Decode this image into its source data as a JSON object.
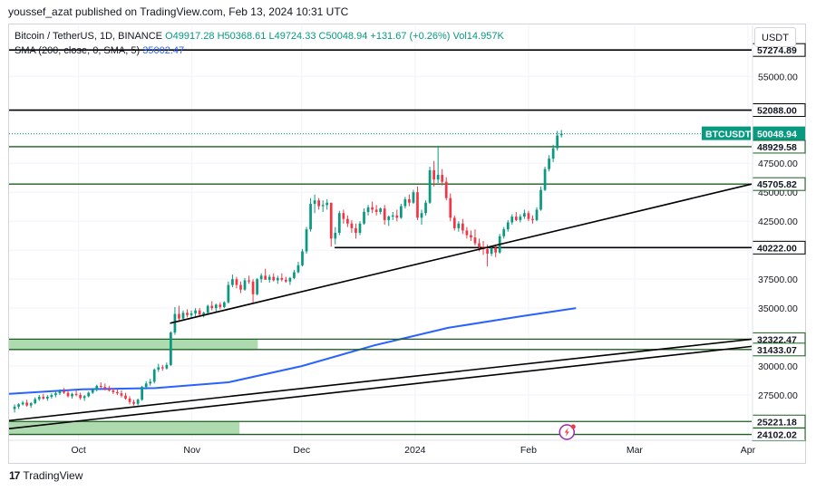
{
  "header": {
    "published_by": "youssef_azat published on TradingView.com, Feb 13, 2024 10:31 UTC"
  },
  "legend": {
    "symbol": "Bitcoin / TetherUS, 1D, BINANCE",
    "ohlc": "O49917.28 H50368.61 L49724.33 C50048.94 +131.67 (+0.26%) Vol14.957K",
    "sma_label": "SMA (200, close, 0, SMA, 5)",
    "sma_value": "35002.47"
  },
  "currency": "USDT",
  "footer": {
    "brand": "TradingView"
  },
  "colors": {
    "up": "#089981",
    "down": "#f23645",
    "sma": "#2962ff",
    "zone_fill": "#a5d6a7",
    "zone_border": "#1b5e20"
  },
  "chart_data": {
    "type": "candlestick",
    "title": "Bitcoin / TetherUS, 1D, BINANCE",
    "ylim": [
      23600,
      59400
    ],
    "y_ticks": [
      "55000.00",
      "50000.00",
      "47500.00",
      "45000.00",
      "42500.00",
      "40000.00",
      "37500.00",
      "35000.00",
      "30000.00",
      "27500.00"
    ],
    "y_tick_values": [
      55000,
      50000,
      47500,
      45000,
      42500,
      40000,
      37500,
      35000,
      30000,
      27500
    ],
    "x_labels": [
      {
        "text": "Oct",
        "day": 19
      },
      {
        "text": "Nov",
        "day": 50
      },
      {
        "text": "Dec",
        "day": 80
      },
      {
        "text": "2024",
        "day": 111
      },
      {
        "text": "Feb",
        "day": 142
      },
      {
        "text": "Mar",
        "day": 171
      },
      {
        "text": "Apr",
        "day": 202
      }
    ],
    "x_range_days": [
      0,
      203
    ],
    "last_price": {
      "symbol": "BTCUSDT",
      "value": "50048.94",
      "num": 50048.94
    },
    "horizontal_levels": [
      {
        "text": "57274.89",
        "value": 57274.89,
        "color": "#000000",
        "x_from_day": 0
      },
      {
        "text": "52088.00",
        "value": 52088.0,
        "color": "#000000",
        "x_from_day": 0
      },
      {
        "text": "48929.58",
        "value": 48929.58,
        "color": "#1b5e20",
        "x_from_day": 0
      },
      {
        "text": "45705.82",
        "value": 45705.82,
        "color": "#1b5e20",
        "x_from_day": 0
      },
      {
        "text": "40222.00",
        "value": 40222.0,
        "color": "#000000",
        "x_from_day": 89
      },
      {
        "text": "32322.47",
        "value": 32322.47,
        "color": "#1b5e20",
        "x_from_day": 0
      },
      {
        "text": "31433.07",
        "value": 31433.07,
        "color": "#1b5e20",
        "x_from_day": 0
      },
      {
        "text": "25221.18",
        "value": 25221.18,
        "color": "#1b5e20",
        "x_from_day": 0
      },
      {
        "text": "24102.02",
        "value": 24102.02,
        "color": "#1b5e20",
        "x_from_day": 0
      }
    ],
    "zones": [
      {
        "from": 31433.07,
        "to": 32322.47,
        "fill_to_day": 68
      },
      {
        "from": 24102.02,
        "to": 25221.18,
        "fill_to_day": 63
      }
    ],
    "trendlines": [
      {
        "from": {
          "day": 44,
          "price": 33700
        },
        "to": {
          "day": 203,
          "price": 45705.82
        }
      },
      {
        "from": {
          "day": 0,
          "price": 25300
        },
        "to": {
          "day": 203,
          "price": 32322.47
        }
      },
      {
        "from": {
          "day": 0,
          "price": 24600
        },
        "to": {
          "day": 203,
          "price": 31700
        }
      }
    ],
    "sma": [
      {
        "day": 0,
        "value": 27600
      },
      {
        "day": 20,
        "value": 28000
      },
      {
        "day": 40,
        "value": 28100
      },
      {
        "day": 60,
        "value": 28600
      },
      {
        "day": 80,
        "value": 30000
      },
      {
        "day": 100,
        "value": 31800
      },
      {
        "day": 120,
        "value": 33300
      },
      {
        "day": 140,
        "value": 34300
      },
      {
        "day": 155,
        "value": 35002.47
      }
    ],
    "candles": [
      [
        26300,
        26700,
        26000,
        26500
      ],
      [
        26500,
        26800,
        26300,
        26700
      ],
      [
        26700,
        27000,
        26600,
        26850
      ],
      [
        26850,
        27100,
        26500,
        26600
      ],
      [
        26600,
        26900,
        26400,
        26800
      ],
      [
        26800,
        27300,
        26700,
        27150
      ],
      [
        27150,
        27500,
        27000,
        27350
      ],
      [
        27350,
        27600,
        27100,
        27200
      ],
      [
        27200,
        27500,
        27000,
        27350
      ],
      [
        27350,
        27650,
        27200,
        27500
      ],
      [
        27500,
        27800,
        27300,
        27650
      ],
      [
        27650,
        28000,
        27500,
        27850
      ],
      [
        27850,
        28100,
        27600,
        27700
      ],
      [
        27700,
        27900,
        27300,
        27400
      ],
      [
        27400,
        27700,
        27200,
        27600
      ],
      [
        27600,
        27900,
        27400,
        27500
      ],
      [
        27500,
        27700,
        27100,
        27250
      ],
      [
        27250,
        27500,
        27000,
        27400
      ],
      [
        27400,
        27800,
        27300,
        27700
      ],
      [
        27700,
        28100,
        27600,
        27950
      ],
      [
        27950,
        28400,
        27800,
        28300
      ],
      [
        28300,
        28600,
        28100,
        28200
      ],
      [
        28200,
        28500,
        27900,
        28050
      ],
      [
        28050,
        28300,
        27800,
        27900
      ],
      [
        27900,
        28100,
        27600,
        27750
      ],
      [
        27750,
        28000,
        27500,
        27650
      ],
      [
        27650,
        27900,
        27300,
        27450
      ],
      [
        27450,
        27700,
        27100,
        27200
      ],
      [
        27200,
        27400,
        26700,
        26900
      ],
      [
        26900,
        27100,
        26600,
        26750
      ],
      [
        26750,
        27200,
        26600,
        27100
      ],
      [
        27100,
        28300,
        27000,
        28200
      ],
      [
        28200,
        28700,
        28000,
        28500
      ],
      [
        28500,
        28900,
        28300,
        28650
      ],
      [
        28650,
        29800,
        28500,
        29700
      ],
      [
        29700,
        30200,
        29500,
        29900
      ],
      [
        29900,
        30100,
        29600,
        29800
      ],
      [
        29800,
        30300,
        29700,
        30100
      ],
      [
        30100,
        33000,
        30000,
        32900
      ],
      [
        32900,
        35100,
        32700,
        34500
      ],
      [
        34500,
        35200,
        33800,
        34100
      ],
      [
        34100,
        34800,
        33900,
        34600
      ],
      [
        34600,
        34900,
        34200,
        34400
      ],
      [
        34400,
        34800,
        34200,
        34550
      ],
      [
        34550,
        35000,
        34300,
        34800
      ],
      [
        34800,
        35000,
        34300,
        34450
      ],
      [
        34450,
        34700,
        34200,
        34600
      ],
      [
        34600,
        35300,
        34500,
        35200
      ],
      [
        35200,
        35600,
        34800,
        35000
      ],
      [
        35000,
        35400,
        34700,
        35300
      ],
      [
        35300,
        35500,
        34900,
        35100
      ],
      [
        35100,
        35600,
        35000,
        35500
      ],
      [
        35500,
        37300,
        35400,
        37000
      ],
      [
        37000,
        37900,
        36800,
        37500
      ],
      [
        37500,
        37700,
        36700,
        37000
      ],
      [
        37000,
        37300,
        36300,
        36600
      ],
      [
        36600,
        37600,
        36500,
        37400
      ],
      [
        37400,
        37800,
        37100,
        37300
      ],
      [
        37300,
        37500,
        35500,
        36200
      ],
      [
        36200,
        37600,
        36100,
        37500
      ],
      [
        37500,
        38000,
        37200,
        37800
      ],
      [
        37800,
        38400,
        37500,
        37450
      ],
      [
        37450,
        37900,
        37200,
        37700
      ],
      [
        37700,
        38000,
        37300,
        37400
      ],
      [
        37400,
        37800,
        37100,
        37600
      ],
      [
        37600,
        38000,
        37300,
        37450
      ],
      [
        37450,
        37700,
        37200,
        37300
      ],
      [
        37300,
        37700,
        37000,
        37600
      ],
      [
        37600,
        38300,
        37500,
        38100
      ],
      [
        38100,
        39000,
        38000,
        38700
      ],
      [
        38700,
        40100,
        38600,
        39900
      ],
      [
        39900,
        42000,
        39700,
        41800
      ],
      [
        41800,
        44500,
        41600,
        44000
      ],
      [
        44000,
        44800,
        43200,
        44300
      ],
      [
        44300,
        44500,
        43500,
        43800
      ],
      [
        43800,
        44300,
        43300,
        43900
      ],
      [
        43900,
        44400,
        43500,
        44100
      ],
      [
        44100,
        44000,
        40300,
        41000
      ],
      [
        41000,
        42000,
        40500,
        41500
      ],
      [
        41500,
        43400,
        41300,
        43200
      ],
      [
        43200,
        43500,
        42300,
        42700
      ],
      [
        42700,
        43000,
        42000,
        42300
      ],
      [
        42300,
        42600,
        41500,
        41900
      ],
      [
        41900,
        42300,
        41000,
        41500
      ],
      [
        41500,
        42500,
        41300,
        42300
      ],
      [
        42300,
        43600,
        42200,
        43300
      ],
      [
        43300,
        43900,
        43000,
        43700
      ],
      [
        43700,
        44200,
        43200,
        43500
      ],
      [
        43500,
        43900,
        43000,
        43300
      ],
      [
        43300,
        43700,
        43100,
        43600
      ],
      [
        43600,
        43900,
        42200,
        42600
      ],
      [
        42600,
        43000,
        42100,
        42900
      ],
      [
        42900,
        43300,
        42600,
        43000
      ],
      [
        43000,
        43500,
        42500,
        42800
      ],
      [
        42800,
        44000,
        42700,
        43800
      ],
      [
        43800,
        44600,
        43600,
        44400
      ],
      [
        44400,
        44800,
        43800,
        44100
      ],
      [
        44100,
        45200,
        44000,
        45000
      ],
      [
        45000,
        45500,
        42600,
        42800
      ],
      [
        42800,
        43500,
        42200,
        43200
      ],
      [
        43200,
        44300,
        43000,
        44100
      ],
      [
        44100,
        47200,
        44000,
        46900
      ],
      [
        46900,
        47700,
        45500,
        46100
      ],
      [
        46100,
        49000,
        45800,
        46500
      ],
      [
        46500,
        47000,
        45600,
        45900
      ],
      [
        45900,
        46300,
        44300,
        44500
      ],
      [
        44500,
        44900,
        42500,
        42800
      ],
      [
        42800,
        43000,
        41700,
        41900
      ],
      [
        41900,
        42500,
        41600,
        42300
      ],
      [
        42300,
        42700,
        41400,
        41700
      ],
      [
        41700,
        42000,
        41000,
        41300
      ],
      [
        41300,
        41700,
        40800,
        41100
      ],
      [
        41100,
        41800,
        40400,
        40600
      ],
      [
        40600,
        41000,
        39900,
        40300
      ],
      [
        40300,
        40800,
        39600,
        40100
      ],
      [
        40100,
        40500,
        38600,
        39700
      ],
      [
        39700,
        40400,
        39500,
        40200
      ],
      [
        40200,
        40500,
        39400,
        39800
      ],
      [
        39800,
        41400,
        39700,
        41200
      ],
      [
        41200,
        42000,
        41000,
        41800
      ],
      [
        41800,
        42600,
        41600,
        42400
      ],
      [
        42400,
        43100,
        42200,
        42900
      ],
      [
        42900,
        43300,
        42500,
        42600
      ],
      [
        42600,
        43100,
        42400,
        42900
      ],
      [
        42900,
        43500,
        42700,
        43200
      ],
      [
        43200,
        43400,
        42500,
        42700
      ],
      [
        42700,
        43000,
        42300,
        42600
      ],
      [
        42600,
        43700,
        42500,
        43500
      ],
      [
        43500,
        45500,
        43400,
        45200
      ],
      [
        45200,
        47200,
        45100,
        47000
      ],
      [
        47000,
        48200,
        46800,
        47900
      ],
      [
        47900,
        49100,
        47600,
        48800
      ],
      [
        48800,
        50300,
        48600,
        49900
      ],
      [
        49917.28,
        50368.61,
        49724.33,
        50048.94
      ]
    ]
  }
}
